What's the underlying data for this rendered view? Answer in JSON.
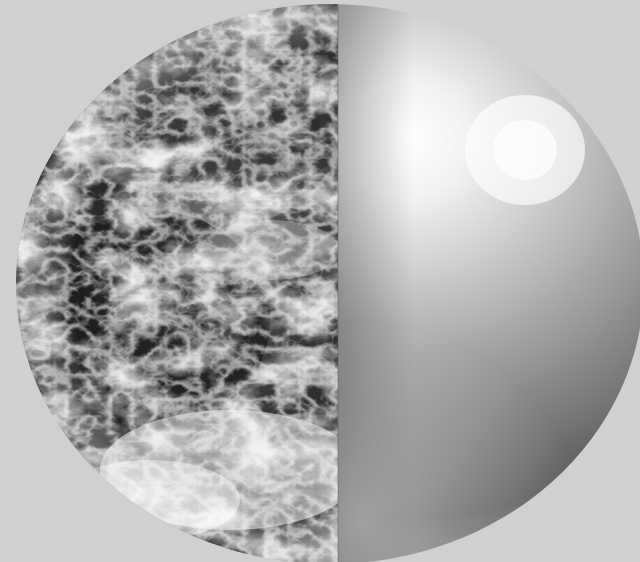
{
  "scene": {
    "subject": "sphere-split-earth-and-metal",
    "left_half": "earth-satellite-view",
    "right_half": "polished-metal-sphere",
    "colors": {
      "background": "#d0d0d0",
      "ocean_dark": "#1a1a1a",
      "cloud_light": "#f2f2f2",
      "metal_highlight": "#fbfbfb",
      "metal_mid": "#a8a8a8",
      "metal_dark": "#4a4a4a"
    }
  }
}
